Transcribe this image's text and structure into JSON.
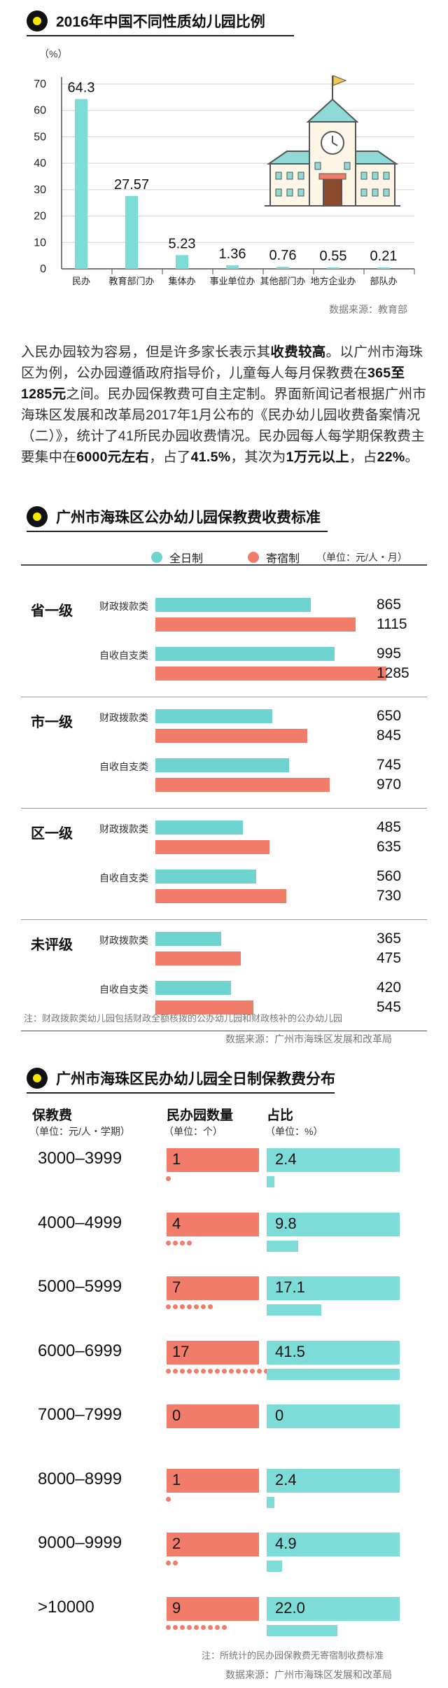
{
  "section1": {
    "title": "2016年中国不同性质幼儿园比例",
    "source": "数据来源：教育部"
  },
  "chart_data": [
    {
      "type": "bar",
      "title": "2016年中国不同性质幼儿园比例",
      "ylabel": "（%）",
      "ylim": [
        0,
        70
      ],
      "yticks": [
        0,
        10,
        20,
        30,
        40,
        50,
        60,
        70
      ],
      "categories": [
        "民办",
        "教育部门办",
        "集体办",
        "事业单位办",
        "其他部门办",
        "地方企业办",
        "部队办"
      ],
      "values": [
        64.3,
        27.57,
        5.23,
        1.36,
        0.76,
        0.55,
        0.21
      ],
      "value_labels": [
        "64.3",
        "27.57",
        "5.23",
        "1.36",
        "0.76",
        "0.55",
        "0.21"
      ],
      "bar_color": "#7ddcd8"
    },
    {
      "type": "bar",
      "orientation": "horizontal",
      "title": "广州市海珠区公办幼儿园保教费收费标准",
      "unit": "（单位：元/人・月）",
      "legend": [
        {
          "name": "全日制",
          "color": "#6fd3cf"
        },
        {
          "name": "寄宿制",
          "color": "#f27c6a"
        }
      ],
      "groups": [
        {
          "name": "省一级",
          "rows": [
            {
              "type": "财政拨款类",
              "full_day": 865,
              "boarding": 1115
            },
            {
              "type": "自收自支类",
              "full_day": 995,
              "boarding": 1285
            }
          ]
        },
        {
          "name": "市一级",
          "rows": [
            {
              "type": "财政拨款类",
              "full_day": 650,
              "boarding": 845
            },
            {
              "type": "自收自支类",
              "full_day": 745,
              "boarding": 970
            }
          ]
        },
        {
          "name": "区一级",
          "rows": [
            {
              "type": "财政拨款类",
              "full_day": 485,
              "boarding": 635
            },
            {
              "type": "自收自支类",
              "full_day": 560,
              "boarding": 730
            }
          ]
        },
        {
          "name": "未评级",
          "rows": [
            {
              "type": "财政拨款类",
              "full_day": 365,
              "boarding": 475
            },
            {
              "type": "自收自支类",
              "full_day": 420,
              "boarding": 545
            }
          ]
        }
      ],
      "note": "注：财政拨款类幼儿园包括财政全额核拨的公办幼儿园和财政核补的公办幼儿园",
      "source": "数据来源：广州市海珠区发展和改革局"
    },
    {
      "type": "table",
      "title": "广州市海珠区民办幼儿园全日制保教费分布",
      "columns": [
        {
          "label": "保教费",
          "unit": "（单位：元/人・学期）"
        },
        {
          "label": "民办园数量",
          "unit": "（单位：个）"
        },
        {
          "label": "占比",
          "unit": "（单位：%）"
        }
      ],
      "rows": [
        {
          "range": "3000–3999",
          "count": 1,
          "count_label": "1",
          "pct": 2.4,
          "pct_label": "2.4"
        },
        {
          "range": "4000–4999",
          "count": 4,
          "count_label": "4",
          "pct": 9.8,
          "pct_label": "9.8"
        },
        {
          "range": "5000–5999",
          "count": 7,
          "count_label": "7",
          "pct": 17.1,
          "pct_label": "17.1"
        },
        {
          "range": "6000–6999",
          "count": 17,
          "count_label": "17",
          "pct": 41.5,
          "pct_label": "41.5"
        },
        {
          "range": "7000–7999",
          "count": 0,
          "count_label": "0",
          "pct": 0,
          "pct_label": "0"
        },
        {
          "range": "8000–8999",
          "count": 1,
          "count_label": "1",
          "pct": 2.4,
          "pct_label": "2.4"
        },
        {
          "range": "9000–9999",
          "count": 2,
          "count_label": "2",
          "pct": 4.9,
          "pct_label": "4.9"
        },
        {
          "range": ">10000",
          "count": 9,
          "count_label": "9",
          "pct": 22.0,
          "pct_label": "22.0"
        }
      ],
      "note": "注：所统计的民办园保教费无寄宿制收费标准",
      "source": "数据来源：广州市海珠区发展和改革局"
    }
  ],
  "article": {
    "p1": "入民办园较为容易，但是许多家长表示其",
    "p1_bold": "收费较高",
    "p2": "。以广州市海珠区为例，公办园遵循政府指导价，儿童每人每月保教费在",
    "p2_bold": "365至1285元",
    "p3": "之间。民办园保教费可自主定制。界面新闻记者根据广州市海珠区发展和改革局2017年1月公布的《民办幼儿园收费备案情况（二）》，统计了41所民办园收费情况。民办园每人每学期保教费主要集中在",
    "p3_bold": "6000元左右",
    "p4": "，占了",
    "p4_bold": "41.5%",
    "p5": "，其次为",
    "p5_bold": "1万元以上",
    "p6": "，占",
    "p6_bold": "22%",
    "p7": "。"
  },
  "icons": {
    "building": "kindergarten-building-icon",
    "title_marker": "yellow-dot-icon"
  }
}
